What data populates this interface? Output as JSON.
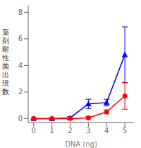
{
  "chart_data": {
    "type": "line",
    "x": [
      0,
      1,
      2,
      3,
      4,
      5
    ],
    "series": [
      {
        "color": "#0000ff",
        "marker": "triangle",
        "values": [
          0.0,
          0.0,
          0.05,
          1.1,
          1.2,
          4.8
        ],
        "yerr": [
          0.05,
          0.05,
          0.1,
          0.35,
          0.25,
          2.1
        ]
      },
      {
        "color": "#ff0000",
        "marker": "circle",
        "values": [
          0.0,
          0.0,
          0.0,
          0.05,
          0.5,
          1.7
        ],
        "yerr": [
          0.05,
          0.05,
          0.05,
          0.1,
          0.15,
          1.0
        ]
      }
    ],
    "xlabel": "DNA (ng)",
    "ylabel": "薬剤耐性菌出現数",
    "xlim": [
      -0.3,
      5.5
    ],
    "ylim": [
      -0.3,
      8.5
    ],
    "xticks": [
      0,
      1,
      2,
      3,
      4,
      5
    ],
    "yticks": [
      0,
      2,
      4,
      6,
      8
    ]
  }
}
